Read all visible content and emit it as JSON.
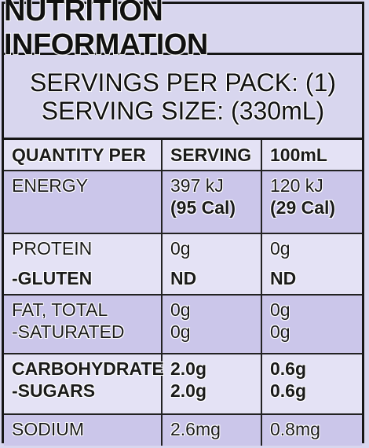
{
  "title": "NUTRITION INFORMATION",
  "servings_per_pack": "SERVINGS PER PACK: (1)",
  "serving_size": "SERVING SIZE: (330mL)",
  "headers": [
    "QUANTITY PER",
    "SERVING",
    "100mL"
  ],
  "rows": {
    "energy": {
      "label": "ENERGY",
      "serving": "397 kJ",
      "serving_cal": "(95 Cal)",
      "per100": "120 kJ",
      "per100_cal": "(29 Cal)"
    },
    "protein": {
      "label": "PROTEIN",
      "serving": "0g",
      "per100": "0g"
    },
    "gluten": {
      "label": "-GLUTEN",
      "serving": "ND",
      "per100": "ND"
    },
    "fat_total": {
      "label": "FAT, TOTAL",
      "serving": "0g",
      "per100": "0g"
    },
    "saturated": {
      "label": "-SATURATED",
      "serving": "0g",
      "per100": "0g"
    },
    "carbohydrate": {
      "label": "CARBOHYDRATE",
      "serving": "2.0g",
      "per100": "0.6g"
    },
    "sugars": {
      "label": "-SUGARS",
      "serving": "2.0g",
      "per100": "0.6g"
    },
    "sodium": {
      "label": "SODIUM",
      "serving": "2.6mg",
      "per100": "0.8mg"
    }
  },
  "colors": {
    "background": "#d8d6ee",
    "border": "#161616",
    "row_tint": "#cbc6ea"
  }
}
